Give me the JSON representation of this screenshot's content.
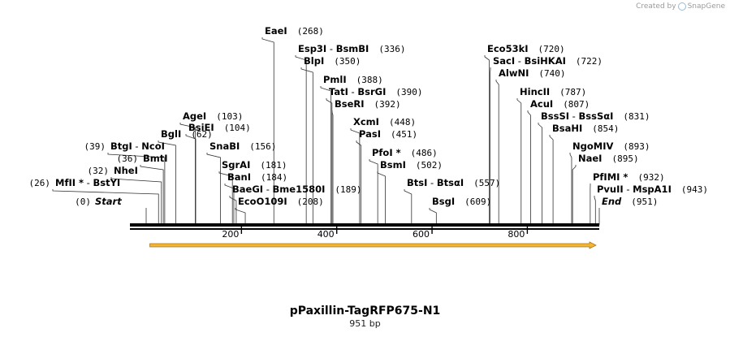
{
  "credit": {
    "prefix": "Created by",
    "brand": "SnapGene"
  },
  "title": "pPaxillin-TagRFP675-N1",
  "length_label": "951 bp",
  "sequence_length": 951,
  "ticks": [
    "200",
    "400",
    "600",
    "800"
  ],
  "tick_values": [
    200,
    400,
    600,
    800
  ],
  "colors": {
    "feature_fill": "#f2b632",
    "feature_outline": "#a8741a",
    "backbone": "#000000"
  },
  "features": [
    {
      "name": "open-reading-frame-arrow",
      "start": 1,
      "end": 951,
      "direction": "forward"
    }
  ],
  "sites": [
    {
      "enzymes": [
        "Start"
      ],
      "pos": 0,
      "pos_label": "(0)",
      "italic": true
    },
    {
      "enzymes": [
        "MfII *",
        "BstYI"
      ],
      "pos": 26,
      "pos_label": "(26)"
    },
    {
      "enzymes": [
        "NheI"
      ],
      "pos": 32,
      "pos_label": "(32)"
    },
    {
      "enzymes": [
        "BmtI"
      ],
      "pos": 36,
      "pos_label": "(36)"
    },
    {
      "enzymes": [
        "BtgI",
        "NcoI"
      ],
      "pos": 39,
      "pos_label": "(39)"
    },
    {
      "enzymes": [
        "BglI"
      ],
      "pos": 62,
      "pos_label": "(62)"
    },
    {
      "enzymes": [
        "AgeI"
      ],
      "pos": 103,
      "pos_label": "(103)"
    },
    {
      "enzymes": [
        "BsiEI"
      ],
      "pos": 104,
      "pos_label": "(104)"
    },
    {
      "enzymes": [
        "SnaBI"
      ],
      "pos": 156,
      "pos_label": "(156)"
    },
    {
      "enzymes": [
        "SgrAI"
      ],
      "pos": 181,
      "pos_label": "(181)"
    },
    {
      "enzymes": [
        "BanI"
      ],
      "pos": 184,
      "pos_label": "(184)"
    },
    {
      "enzymes": [
        "BaeGI",
        "Bme1580I"
      ],
      "pos": 189,
      "pos_label": "(189)"
    },
    {
      "enzymes": [
        "EcoO109I"
      ],
      "pos": 208,
      "pos_label": "(208)"
    },
    {
      "enzymes": [
        "EaeI"
      ],
      "pos": 268,
      "pos_label": "(268)"
    },
    {
      "enzymes": [
        "Esp3I",
        "BsmBI"
      ],
      "pos": 336,
      "pos_label": "(336)"
    },
    {
      "enzymes": [
        "BlpI"
      ],
      "pos": 350,
      "pos_label": "(350)"
    },
    {
      "enzymes": [
        "PmlI"
      ],
      "pos": 388,
      "pos_label": "(388)"
    },
    {
      "enzymes": [
        "TatI",
        "BsrGI"
      ],
      "pos": 390,
      "pos_label": "(390)"
    },
    {
      "enzymes": [
        "BseRI"
      ],
      "pos": 392,
      "pos_label": "(392)"
    },
    {
      "enzymes": [
        "XcmI"
      ],
      "pos": 448,
      "pos_label": "(448)"
    },
    {
      "enzymes": [
        "PasI"
      ],
      "pos": 451,
      "pos_label": "(451)"
    },
    {
      "enzymes": [
        "PfoI *"
      ],
      "pos": 486,
      "pos_label": "(486)"
    },
    {
      "enzymes": [
        "BsmI"
      ],
      "pos": 502,
      "pos_label": "(502)"
    },
    {
      "enzymes": [
        "BtsI",
        "BtsαI"
      ],
      "pos": 557,
      "pos_label": "(557)"
    },
    {
      "enzymes": [
        "BsgI"
      ],
      "pos": 609,
      "pos_label": "(609)"
    },
    {
      "enzymes": [
        "Eco53kI"
      ],
      "pos": 720,
      "pos_label": "(720)"
    },
    {
      "enzymes": [
        "SacI",
        "BsiHKAI"
      ],
      "pos": 722,
      "pos_label": "(722)"
    },
    {
      "enzymes": [
        "AlwNI"
      ],
      "pos": 740,
      "pos_label": "(740)"
    },
    {
      "enzymes": [
        "HincII"
      ],
      "pos": 787,
      "pos_label": "(787)"
    },
    {
      "enzymes": [
        "AcuI"
      ],
      "pos": 807,
      "pos_label": "(807)"
    },
    {
      "enzymes": [
        "BssSI",
        "BssSαI"
      ],
      "pos": 831,
      "pos_label": "(831)"
    },
    {
      "enzymes": [
        "BsaHI"
      ],
      "pos": 854,
      "pos_label": "(854)"
    },
    {
      "enzymes": [
        "NgoMIV"
      ],
      "pos": 893,
      "pos_label": "(893)"
    },
    {
      "enzymes": [
        "NaeI"
      ],
      "pos": 895,
      "pos_label": "(895)"
    },
    {
      "enzymes": [
        "PfIMI *"
      ],
      "pos": 932,
      "pos_label": "(932)"
    },
    {
      "enzymes": [
        "PvuII",
        "MspA1I"
      ],
      "pos": 943,
      "pos_label": "(943)"
    },
    {
      "enzymes": [
        "End"
      ],
      "pos": 951,
      "pos_label": "(951)",
      "italic": true
    }
  ]
}
